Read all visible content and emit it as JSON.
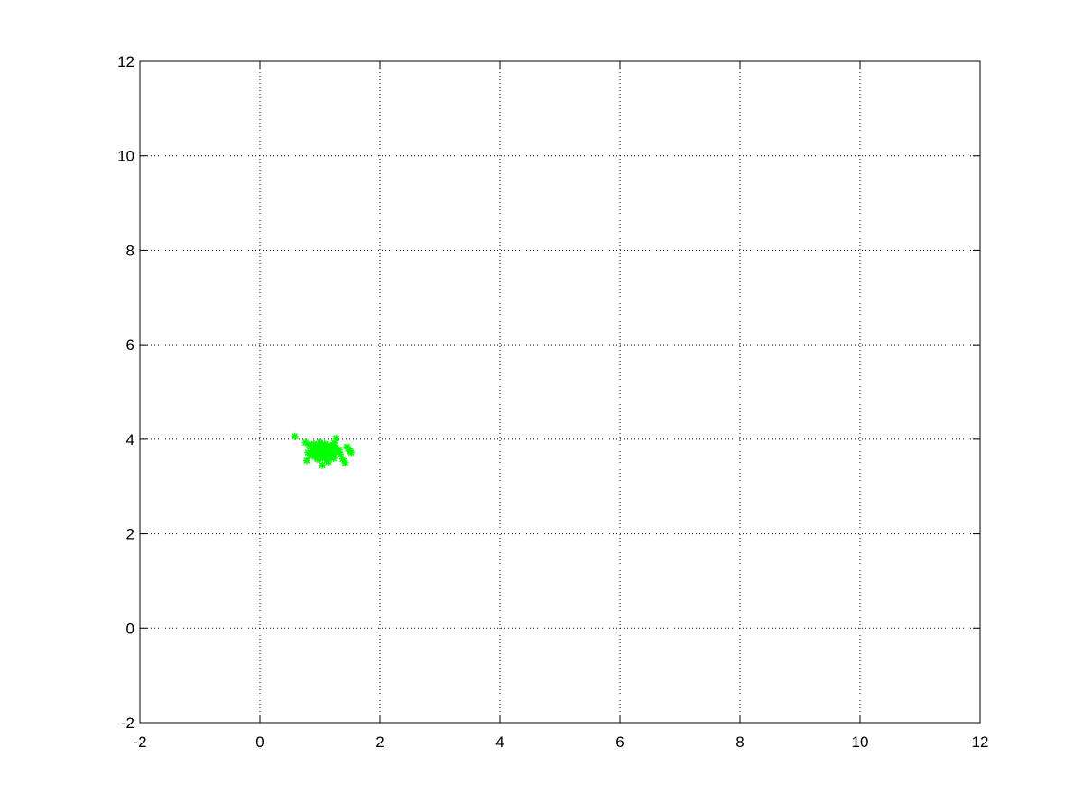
{
  "chart_data": {
    "type": "scatter",
    "title": "",
    "xlabel": "",
    "ylabel": "",
    "xlim": [
      -2,
      12
    ],
    "ylim": [
      -2,
      12
    ],
    "xticks": [
      "-2",
      "0",
      "2",
      "4",
      "6",
      "8",
      "10",
      "12"
    ],
    "yticks": [
      "-2",
      "0",
      "2",
      "4",
      "6",
      "8",
      "10",
      "12"
    ],
    "grid": true,
    "marker": "asterisk",
    "color": "#00ff00",
    "series": [
      {
        "points": [
          [
            0.58,
            4.06
          ],
          [
            0.76,
            3.93
          ],
          [
            0.82,
            3.88
          ],
          [
            0.86,
            3.8
          ],
          [
            0.8,
            3.72
          ],
          [
            0.84,
            3.66
          ],
          [
            0.78,
            3.55
          ],
          [
            0.9,
            3.9
          ],
          [
            0.95,
            3.85
          ],
          [
            0.93,
            3.76
          ],
          [
            0.97,
            3.7
          ],
          [
            0.91,
            3.63
          ],
          [
            0.96,
            3.58
          ],
          [
            1.0,
            3.93
          ],
          [
            1.02,
            3.82
          ],
          [
            1.05,
            3.75
          ],
          [
            1.03,
            3.68
          ],
          [
            1.01,
            3.6
          ],
          [
            1.04,
            3.45
          ],
          [
            1.08,
            3.9
          ],
          [
            1.1,
            3.8
          ],
          [
            1.12,
            3.72
          ],
          [
            1.09,
            3.65
          ],
          [
            1.11,
            3.56
          ],
          [
            1.15,
            3.88
          ],
          [
            1.18,
            3.79
          ],
          [
            1.16,
            3.7
          ],
          [
            1.2,
            3.62
          ],
          [
            1.14,
            3.52
          ],
          [
            1.24,
            3.92
          ],
          [
            1.26,
            3.82
          ],
          [
            1.28,
            3.74
          ],
          [
            1.22,
            3.68
          ],
          [
            1.27,
            4.02
          ],
          [
            1.32,
            3.78
          ],
          [
            1.34,
            3.68
          ],
          [
            1.38,
            3.58
          ],
          [
            1.42,
            3.5
          ],
          [
            1.47,
            3.8
          ],
          [
            1.5,
            3.75
          ],
          [
            1.52,
            3.72
          ],
          [
            1.45,
            3.84
          ],
          [
            0.88,
            3.7
          ],
          [
            0.99,
            3.78
          ],
          [
            1.06,
            3.86
          ],
          [
            1.13,
            3.76
          ],
          [
            1.19,
            3.84
          ],
          [
            1.07,
            3.62
          ],
          [
            0.94,
            3.66
          ],
          [
            1.23,
            3.6
          ]
        ]
      }
    ]
  }
}
